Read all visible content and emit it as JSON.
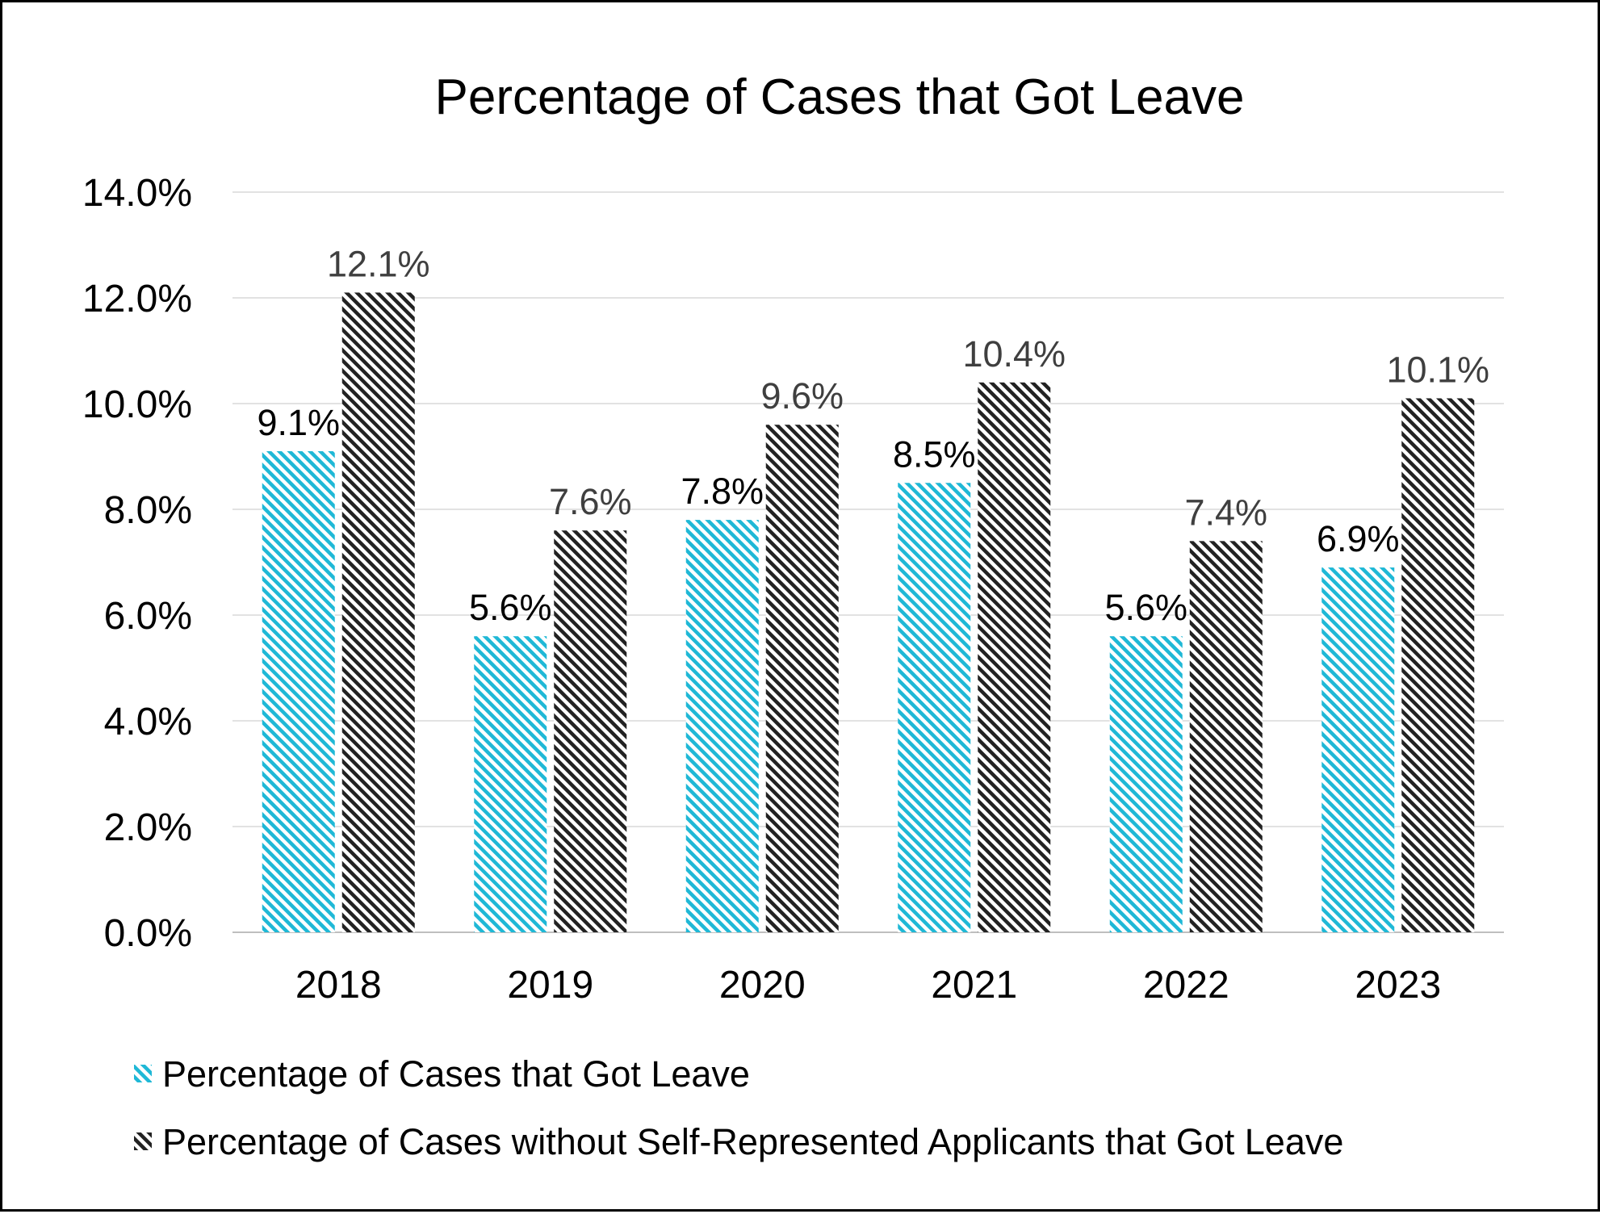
{
  "chart_data": {
    "type": "bar",
    "title": "Percentage of Cases that Got Leave",
    "xlabel": "",
    "ylabel": "",
    "categories": [
      "2018",
      "2019",
      "2020",
      "2021",
      "2022",
      "2023"
    ],
    "ylim": [
      0,
      14
    ],
    "y_ticks": [
      "0.0%",
      "2.0%",
      "4.0%",
      "6.0%",
      "8.0%",
      "10.0%",
      "12.0%",
      "14.0%"
    ],
    "grid": true,
    "legend_position": "bottom-left",
    "series": [
      {
        "name": "Percentage of Cases that Got Leave",
        "values": [
          9.1,
          5.6,
          7.8,
          8.5,
          5.6,
          6.9
        ],
        "labels": [
          "9.1%",
          "5.6%",
          "7.8%",
          "8.5%",
          "5.6%",
          "6.9%"
        ],
        "color": "#1fb8d6",
        "pattern": "diagonal-hatch"
      },
      {
        "name": "Percentage of Cases without Self-Represented Applicants that Got Leave",
        "values": [
          12.1,
          7.6,
          9.6,
          10.4,
          7.4,
          10.1
        ],
        "labels": [
          "12.1%",
          "7.6%",
          "9.6%",
          "10.4%",
          "7.4%",
          "10.1%"
        ],
        "color": "#222222",
        "pattern": "diagonal-hatch"
      }
    ]
  }
}
